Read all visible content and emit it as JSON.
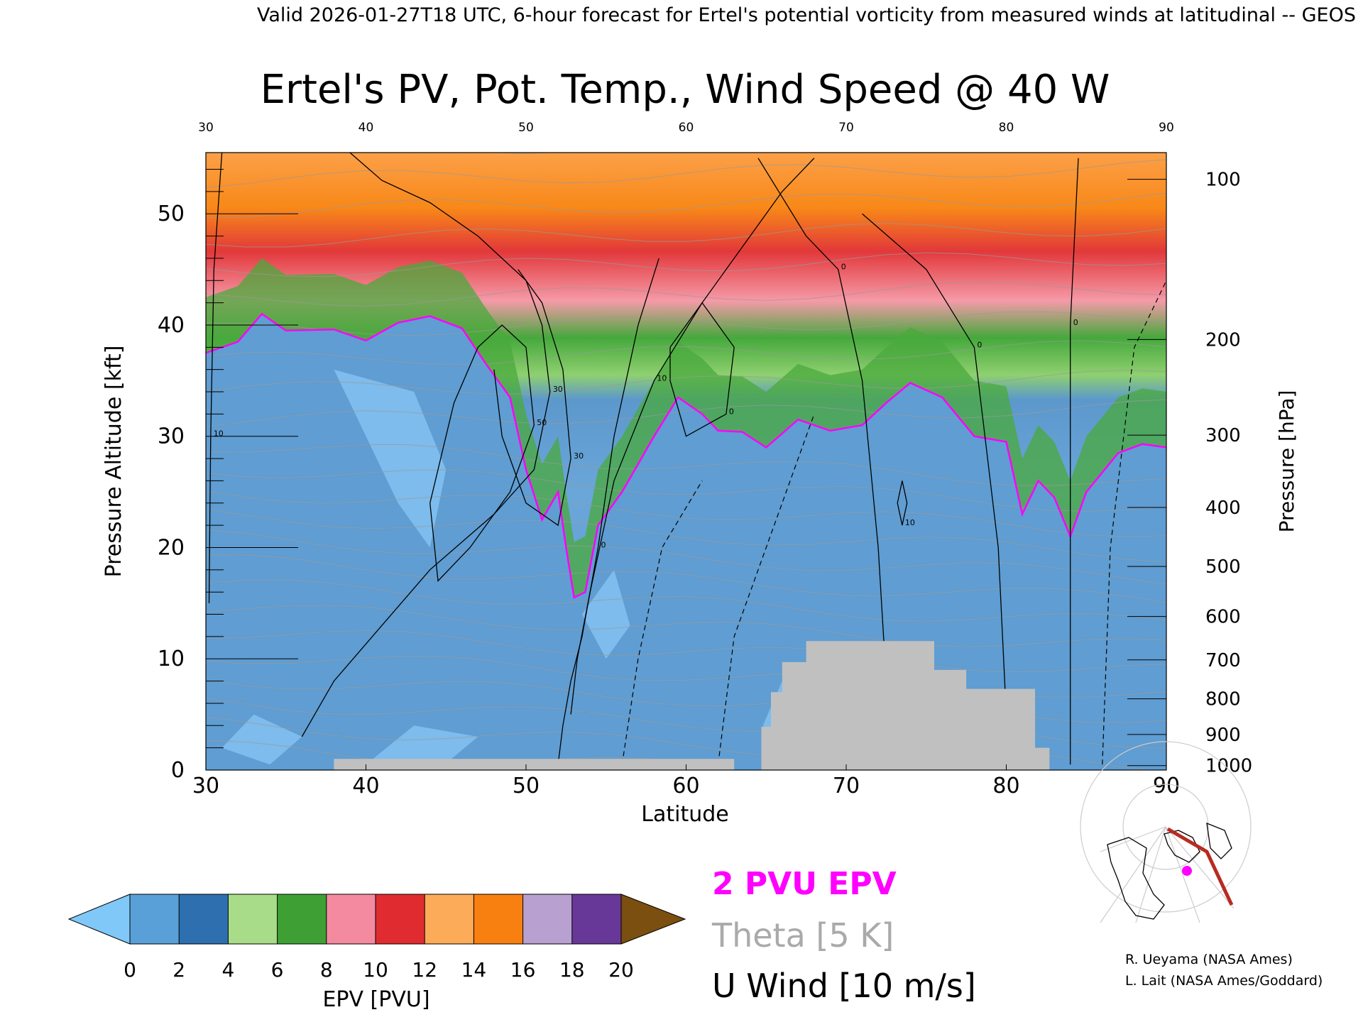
{
  "header": {
    "valid_line": "Valid 2026-01-27T18 UTC, 6-hour forecast for Ertel's potential vorticity from measured winds at latitudinal -- GEOS"
  },
  "chart_data": {
    "type": "heatmap",
    "title": "Ertel's PV, Pot. Temp., Wind Speed @ 40 W",
    "xlabel": "Latitude",
    "ylabel_left": "Pressure Altitude [kft]",
    "ylabel_right": "Pressure [hPa]",
    "xlim": [
      30,
      90
    ],
    "ylim": [
      0,
      55.5
    ],
    "x_ticks": [
      30,
      40,
      50,
      60,
      70,
      80,
      90
    ],
    "y_ticks": [
      0,
      10,
      20,
      30,
      40,
      50
    ],
    "pressure_ticks": [
      {
        "label": "100",
        "kft": 53.1
      },
      {
        "label": "200",
        "kft": 38.7
      },
      {
        "label": "300",
        "kft": 30.1
      },
      {
        "label": "400",
        "kft": 23.6
      },
      {
        "label": "500",
        "kft": 18.3
      },
      {
        "label": "600",
        "kft": 13.8
      },
      {
        "label": "700",
        "kft": 9.9
      },
      {
        "label": "800",
        "kft": 6.4
      },
      {
        "label": "900",
        "kft": 3.2
      },
      {
        "label": "1000",
        "kft": 0.4
      }
    ],
    "tropopause_2pvu": [
      [
        30,
        37.5
      ],
      [
        32,
        38.5
      ],
      [
        33.5,
        41
      ],
      [
        35,
        39.5
      ],
      [
        38,
        39.6
      ],
      [
        40,
        38.6
      ],
      [
        42,
        40.2
      ],
      [
        44,
        40.8
      ],
      [
        46,
        39.7
      ],
      [
        47.5,
        36.5
      ],
      [
        49,
        33.5
      ],
      [
        50,
        27
      ],
      [
        51,
        22.5
      ],
      [
        52,
        25
      ],
      [
        52.5,
        20
      ],
      [
        53,
        15.5
      ],
      [
        53.7,
        16
      ],
      [
        54.5,
        22
      ],
      [
        56,
        25
      ],
      [
        58,
        30
      ],
      [
        59.5,
        33.5
      ],
      [
        61,
        32
      ],
      [
        62,
        30.5
      ],
      [
        63.5,
        30.4
      ],
      [
        65,
        29
      ],
      [
        67,
        31.5
      ],
      [
        69,
        30.5
      ],
      [
        71,
        31
      ],
      [
        72.5,
        33
      ],
      [
        74,
        34.8
      ],
      [
        76,
        33.5
      ],
      [
        78,
        30
      ],
      [
        80,
        29.5
      ],
      [
        81,
        23
      ],
      [
        82,
        26
      ],
      [
        83,
        24.5
      ],
      [
        84,
        21
      ],
      [
        85,
        25
      ],
      [
        87,
        28.5
      ],
      [
        88.5,
        29.3
      ],
      [
        90,
        29
      ]
    ],
    "terrain": [
      [
        38,
        0
      ],
      [
        38,
        1
      ],
      [
        63,
        1
      ],
      [
        63,
        0
      ],
      [
        64.7,
        0
      ],
      [
        64.7,
        3.9
      ],
      [
        65.3,
        3.9
      ],
      [
        65.3,
        7
      ],
      [
        66,
        7
      ],
      [
        66,
        9.7
      ],
      [
        67.5,
        9.7
      ],
      [
        67.5,
        11.6
      ],
      [
        75.5,
        11.6
      ],
      [
        75.5,
        9
      ],
      [
        77.5,
        9
      ],
      [
        77.5,
        7.3
      ],
      [
        81.8,
        7.3
      ],
      [
        81.8,
        2
      ],
      [
        82.7,
        2
      ],
      [
        82.7,
        0
      ]
    ],
    "u_wind_contours": [
      {
        "label": "0",
        "points": [
          [
            52,
            0.5
          ],
          [
            52.3,
            4
          ],
          [
            52.8,
            8
          ],
          [
            53.5,
            12
          ],
          [
            54.5,
            20
          ],
          [
            55.5,
            30
          ],
          [
            57,
            40
          ],
          [
            58.3,
            46
          ]
        ]
      },
      {
        "label": "10",
        "points": [
          [
            52.8,
            5
          ],
          [
            53.2,
            10
          ],
          [
            54,
            16
          ],
          [
            55.5,
            26
          ],
          [
            58,
            35
          ],
          [
            61,
            42
          ],
          [
            64,
            48
          ],
          [
            66,
            52
          ],
          [
            68,
            55
          ]
        ]
      },
      {
        "label": "10",
        "points": [
          [
            31,
            55.5
          ],
          [
            30.5,
            45
          ],
          [
            30.3,
            30
          ],
          [
            30.2,
            15
          ]
        ]
      },
      {
        "label": "30",
        "points": [
          [
            36,
            3
          ],
          [
            38,
            8
          ],
          [
            41,
            13
          ],
          [
            44,
            18
          ],
          [
            48,
            23
          ],
          [
            50.5,
            27
          ],
          [
            51.5,
            34
          ],
          [
            51,
            40
          ],
          [
            50,
            44
          ],
          [
            47,
            48
          ],
          [
            44,
            51
          ],
          [
            41,
            53
          ],
          [
            39,
            55.5
          ]
        ]
      },
      {
        "label": "30",
        "points": [
          [
            48,
            36
          ],
          [
            48.5,
            30
          ],
          [
            50,
            24
          ],
          [
            52,
            22
          ],
          [
            52.8,
            28
          ],
          [
            52.3,
            36
          ],
          [
            51,
            42
          ],
          [
            49.5,
            45
          ]
        ]
      },
      {
        "label": "50",
        "points": [
          [
            44,
            24
          ],
          [
            45.5,
            33
          ],
          [
            47,
            38
          ],
          [
            48.5,
            40
          ],
          [
            50,
            38
          ],
          [
            50.5,
            31
          ],
          [
            49,
            25
          ],
          [
            46.5,
            20
          ],
          [
            44.5,
            17
          ],
          [
            44,
            24
          ]
        ]
      },
      {
        "label": "0",
        "points": [
          [
            84,
            0.5
          ],
          [
            84,
            20
          ],
          [
            84,
            40
          ],
          [
            84.5,
            55
          ]
        ]
      },
      {
        "label": "0",
        "points": [
          [
            72.5,
            8
          ],
          [
            72,
            20
          ],
          [
            71,
            35
          ],
          [
            69.5,
            45
          ],
          [
            67.5,
            48
          ],
          [
            64.5,
            55
          ]
        ]
      },
      {
        "label": "0",
        "points": [
          [
            80,
            5
          ],
          [
            79.5,
            20
          ],
          [
            78,
            38
          ],
          [
            75,
            45
          ],
          [
            71,
            50
          ]
        ]
      },
      {
        "label": "0",
        "points": [
          [
            59,
            38
          ],
          [
            61,
            42
          ],
          [
            63,
            38
          ],
          [
            62.5,
            32
          ],
          [
            60,
            30
          ],
          [
            59,
            35
          ],
          [
            59,
            38
          ]
        ]
      },
      {
        "label": "10",
        "points": [
          [
            73.5,
            26
          ],
          [
            73.8,
            24
          ],
          [
            73.5,
            22
          ],
          [
            73.2,
            24
          ],
          [
            73.5,
            26
          ]
        ]
      }
    ],
    "u_wind_dashed": [
      [
        [
          56,
          0.5
        ],
        [
          57,
          10
        ],
        [
          58.5,
          20
        ],
        [
          61,
          26
        ]
      ],
      [
        [
          62,
          0.5
        ],
        [
          63,
          12
        ],
        [
          66,
          24
        ],
        [
          68,
          32
        ]
      ],
      [
        [
          86,
          0.5
        ],
        [
          86.5,
          20
        ],
        [
          88,
          38
        ],
        [
          90,
          44
        ]
      ]
    ],
    "colorbar": {
      "label": "EPV [PVU]",
      "ticks": [
        "0",
        "2",
        "4",
        "6",
        "8",
        "10",
        "12",
        "14",
        "16",
        "18",
        "20"
      ],
      "colors": [
        "#5aa0d8",
        "#2e6fb0",
        "#a8dc88",
        "#3ea034",
        "#f48aa0",
        "#e02c30",
        "#fcac58",
        "#f88010",
        "#b8a0d0",
        "#683898",
        "#f0e888"
      ],
      "under_color": "#80c8f8",
      "over_color": "#7b4f10"
    },
    "legend": {
      "pvu": "2 PVU EPV",
      "theta": "Theta [5 K]",
      "uwind": "U Wind [10 m/s]",
      "pvu_color": "#ff00ff",
      "theta_color": "#aaaaaa",
      "uwind_color": "#000000"
    }
  },
  "credits": {
    "line1": "R. Ueyama (NASA Ames)",
    "line2": "L. Lait (NASA Ames/Goddard)"
  }
}
